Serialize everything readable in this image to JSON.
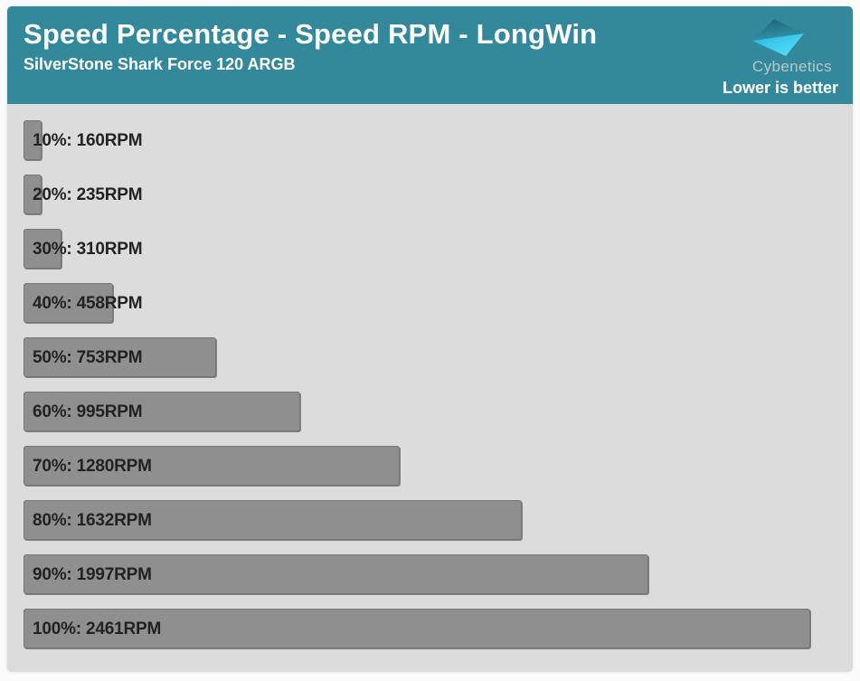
{
  "header": {
    "title": "Speed Percentage - Speed RPM - LongWin",
    "subtitle": "SilverStone Shark Force 120 ARGB",
    "brand": "Cybenetics",
    "note": "Lower is better"
  },
  "colors": {
    "header_bg": "#33899b",
    "chart_bg": "#dcdcdd",
    "bar_fill": "#8f8f8f",
    "bar_border": "#757575",
    "label_text": "#222222",
    "logo_dark_teal": "#1d6273",
    "logo_bright_cyan": "#55dcf9"
  },
  "chart_data": {
    "type": "bar",
    "orientation": "horizontal",
    "title": "Speed Percentage - Speed RPM - LongWin",
    "subtitle": "SilverStone Shark Force 120 ARGB",
    "annotation": "Lower is better",
    "categories": [
      "10%",
      "20%",
      "30%",
      "40%",
      "50%",
      "60%",
      "70%",
      "80%",
      "90%",
      "100%"
    ],
    "values": [
      160,
      235,
      310,
      458,
      753,
      995,
      1280,
      1632,
      1997,
      2461
    ],
    "unit": "RPM",
    "labels": [
      "10%: 160RPM",
      "20%: 235RPM",
      "30%: 310RPM",
      "40%: 458RPM",
      "50%: 753RPM",
      "60%: 995RPM",
      "70%: 1280RPM",
      "80%: 1632RPM",
      "90%: 1997RPM",
      "100%: 2461RPM"
    ],
    "xlabel": "",
    "ylabel": "",
    "xlim": [
      200,
      2461
    ],
    "grid": false,
    "legend": false
  }
}
